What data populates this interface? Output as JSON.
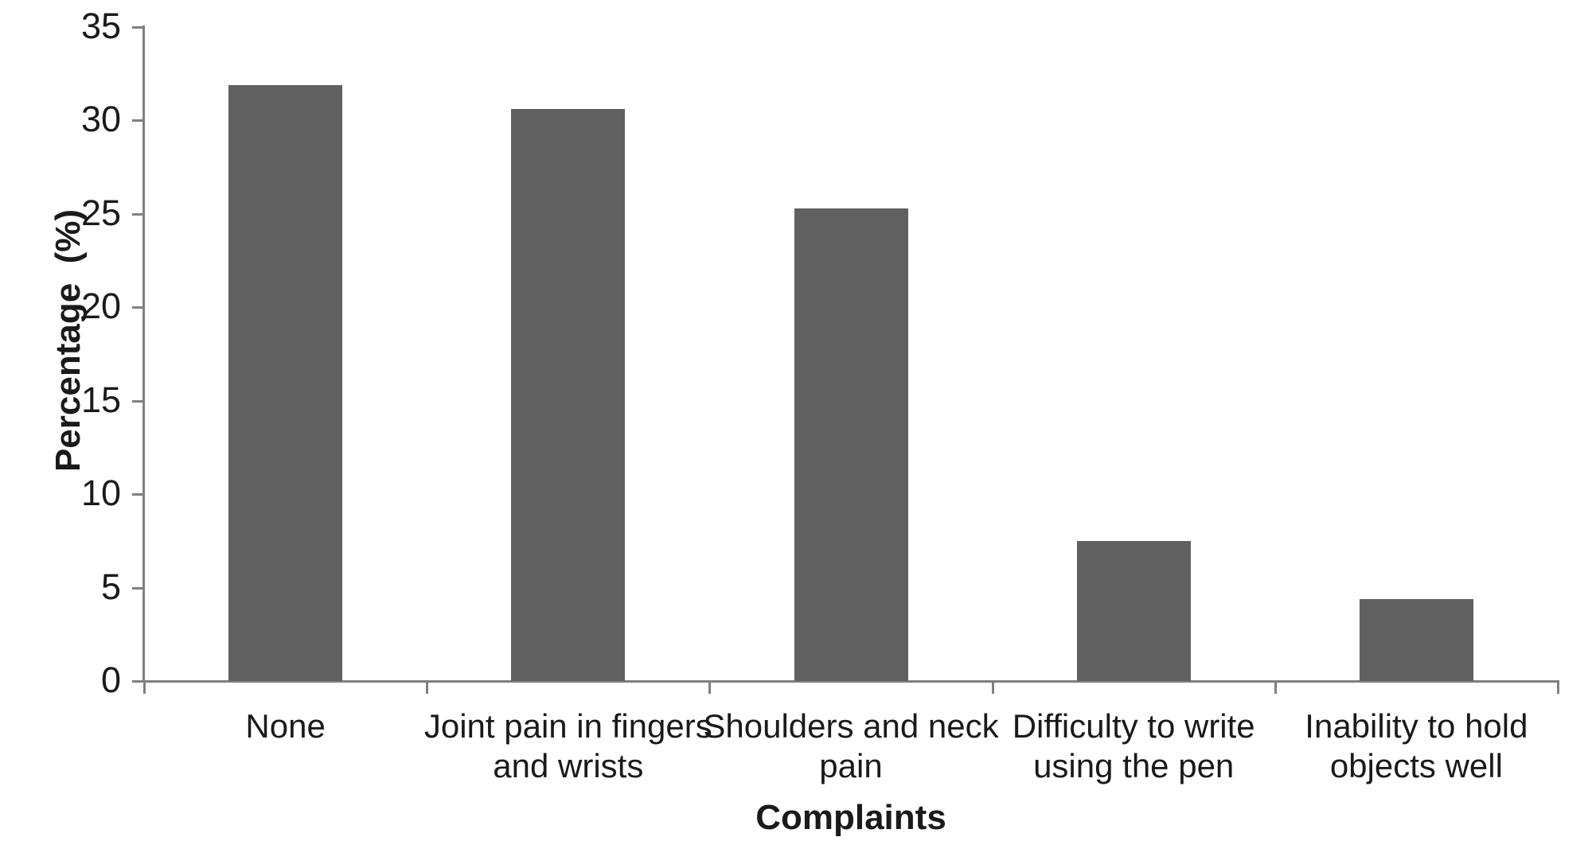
{
  "chart_data": {
    "type": "bar",
    "title": "",
    "categories": [
      "None",
      "Joint pain in fingers and wrists",
      "Shoulders and neck pain",
      "Difficulty to write using the pen",
      "Inability to hold objects well"
    ],
    "categories_display": [
      "None",
      "Joint pain in fingers\nand wrists",
      "Shoulders and neck\npain",
      "Difficulty to write\nusing the pen",
      "Inability to hold\nobjects well"
    ],
    "values": [
      31.9,
      30.6,
      25.3,
      7.5,
      4.4
    ],
    "xlabel": "Complaints",
    "ylabel": "Percentage  (%)",
    "ylim": [
      0,
      35
    ],
    "yticks": [
      0,
      5,
      10,
      15,
      20,
      25,
      30,
      35
    ],
    "grid": false,
    "legend": false,
    "data_labels": false,
    "bar_color": "#606060",
    "axis_color": "#7f7f7f",
    "text_color": "#1a1a1a",
    "background_color": "#ffffff"
  }
}
